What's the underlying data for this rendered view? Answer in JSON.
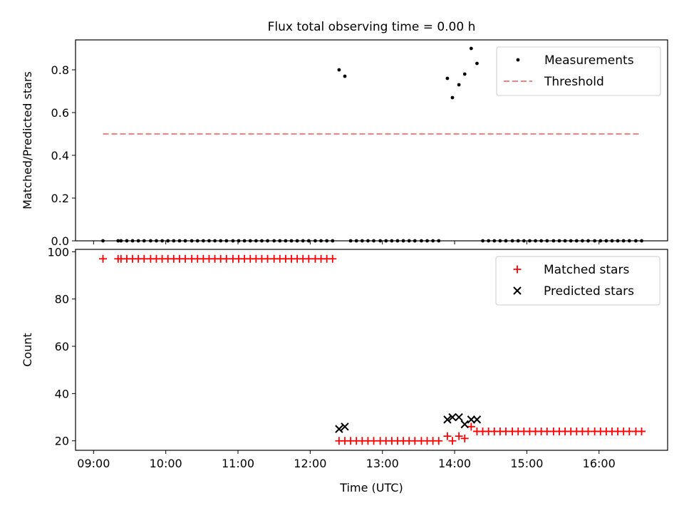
{
  "chart_data": [
    {
      "type": "scatter",
      "title": "Flux total observing time = 0.00 h",
      "xlabel": "",
      "ylabel": "Matched/Predicted stars",
      "ylim": [
        0,
        0.94
      ],
      "yticks": [
        0.0,
        0.2,
        0.4,
        0.6,
        0.8
      ],
      "ytick_labels": [
        "0.0",
        "0.2",
        "0.4",
        "0.6",
        "0.8"
      ],
      "xlim": [
        8.75,
        16.95
      ],
      "legend_position": "top-right",
      "series": [
        {
          "name": "Measurements",
          "marker": "dot",
          "color": "#000000",
          "x": [
            9.13,
            9.34,
            9.38,
            9.46,
            9.54,
            9.62,
            9.7,
            9.79,
            9.87,
            9.95,
            10.03,
            10.11,
            10.19,
            10.27,
            10.36,
            10.44,
            10.52,
            10.6,
            10.68,
            10.76,
            10.84,
            10.93,
            11.01,
            11.09,
            11.17,
            11.25,
            11.33,
            11.41,
            11.5,
            11.58,
            11.66,
            11.74,
            11.82,
            11.9,
            11.98,
            12.07,
            12.15,
            12.23,
            12.31,
            12.4,
            12.48,
            12.56,
            12.64,
            12.72,
            12.8,
            12.88,
            12.97,
            13.05,
            13.13,
            13.21,
            13.29,
            13.37,
            13.45,
            13.54,
            13.62,
            13.7,
            13.78,
            13.9,
            13.97,
            14.06,
            14.14,
            14.23,
            14.31,
            14.39,
            14.47,
            14.55,
            14.63,
            14.71,
            14.8,
            14.88,
            14.96,
            15.04,
            15.12,
            15.2,
            15.28,
            15.37,
            15.45,
            15.53,
            15.61,
            15.69,
            15.77,
            15.85,
            15.94,
            16.02,
            16.1,
            16.18,
            16.26,
            16.34,
            16.42,
            16.51,
            16.59
          ],
          "y": [
            0,
            0,
            0,
            0,
            0,
            0,
            0,
            0,
            0,
            0,
            0,
            0,
            0,
            0,
            0,
            0,
            0,
            0,
            0,
            0,
            0,
            0,
            0,
            0,
            0,
            0,
            0,
            0,
            0,
            0,
            0,
            0,
            0,
            0,
            0,
            0,
            0,
            0,
            0,
            0.8,
            0.77,
            0,
            0,
            0,
            0,
            0,
            0,
            0,
            0,
            0,
            0,
            0,
            0,
            0,
            0,
            0,
            0,
            0.76,
            0.67,
            0.73,
            0.78,
            0.9,
            0.83,
            0,
            0,
            0,
            0,
            0,
            0,
            0,
            0,
            0,
            0,
            0,
            0,
            0,
            0,
            0,
            0,
            0,
            0,
            0,
            0,
            0,
            0,
            0,
            0,
            0,
            0,
            0,
            0
          ]
        },
        {
          "name": "Threshold",
          "type": "line",
          "dashed": true,
          "color": "#ff7f7f",
          "x": [
            9.13,
            16.59
          ],
          "y": [
            0.5,
            0.5
          ]
        }
      ]
    },
    {
      "type": "scatter",
      "title": "",
      "xlabel": "Time (UTC)",
      "ylabel": "Count",
      "ylim": [
        16,
        101
      ],
      "yticks": [
        20,
        40,
        60,
        80,
        100
      ],
      "ytick_labels": [
        "20",
        "40",
        "60",
        "80",
        "100"
      ],
      "xlim": [
        8.75,
        16.95
      ],
      "xticks": [
        9,
        10,
        11,
        12,
        13,
        14,
        15,
        16
      ],
      "xtick_labels": [
        "09:00",
        "10:00",
        "11:00",
        "12:00",
        "13:00",
        "14:00",
        "15:00",
        "16:00"
      ],
      "legend_position": "top-right",
      "series": [
        {
          "name": "Matched stars",
          "marker": "plus",
          "color": "#ff0000",
          "x": [
            9.13,
            9.34,
            9.38,
            9.46,
            9.54,
            9.62,
            9.7,
            9.79,
            9.87,
            9.95,
            10.03,
            10.11,
            10.19,
            10.27,
            10.36,
            10.44,
            10.52,
            10.6,
            10.68,
            10.76,
            10.84,
            10.93,
            11.01,
            11.09,
            11.17,
            11.25,
            11.33,
            11.41,
            11.5,
            11.58,
            11.66,
            11.74,
            11.82,
            11.9,
            11.98,
            12.07,
            12.15,
            12.23,
            12.31,
            12.4,
            12.48,
            12.56,
            12.64,
            12.72,
            12.8,
            12.88,
            12.97,
            13.05,
            13.13,
            13.21,
            13.29,
            13.37,
            13.45,
            13.54,
            13.62,
            13.7,
            13.78,
            13.9,
            13.97,
            14.06,
            14.14,
            14.23,
            14.31,
            14.39,
            14.47,
            14.55,
            14.63,
            14.71,
            14.8,
            14.88,
            14.96,
            15.04,
            15.12,
            15.2,
            15.28,
            15.37,
            15.45,
            15.53,
            15.61,
            15.69,
            15.77,
            15.85,
            15.94,
            16.02,
            16.1,
            16.18,
            16.26,
            16.34,
            16.42,
            16.51,
            16.59
          ],
          "y": [
            97,
            97,
            97,
            97,
            97,
            97,
            97,
            97,
            97,
            97,
            97,
            97,
            97,
            97,
            97,
            97,
            97,
            97,
            97,
            97,
            97,
            97,
            97,
            97,
            97,
            97,
            97,
            97,
            97,
            97,
            97,
            97,
            97,
            97,
            97,
            97,
            97,
            97,
            97,
            20,
            20,
            20,
            20,
            20,
            20,
            20,
            20,
            20,
            20,
            20,
            20,
            20,
            20,
            20,
            20,
            20,
            20,
            22,
            20,
            22,
            21,
            26,
            24,
            24,
            24,
            24,
            24,
            24,
            24,
            24,
            24,
            24,
            24,
            24,
            24,
            24,
            24,
            24,
            24,
            24,
            24,
            24,
            24,
            24,
            24,
            24,
            24,
            24,
            24,
            24,
            24
          ]
        },
        {
          "name": "Predicted stars",
          "marker": "x",
          "color": "#000000",
          "x": [
            12.4,
            12.48,
            13.9,
            13.97,
            14.06,
            14.14,
            14.23,
            14.31
          ],
          "y": [
            25,
            26,
            29,
            30,
            30,
            27,
            29,
            29
          ]
        }
      ]
    }
  ]
}
